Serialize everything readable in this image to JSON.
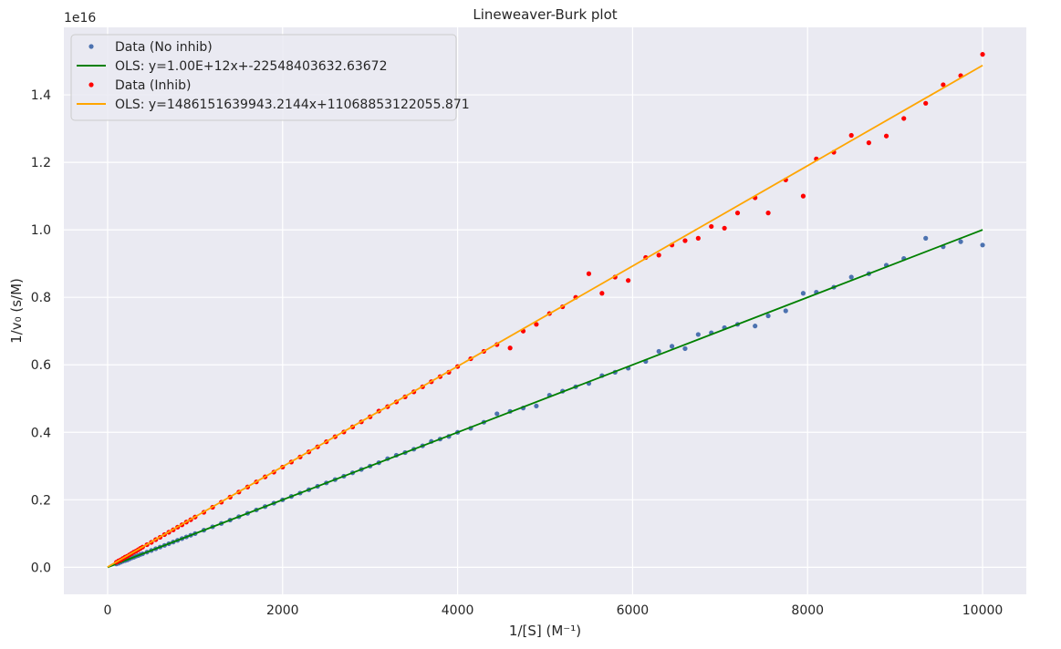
{
  "chart_data": {
    "type": "scatter",
    "title": "Lineweaver-Burk plot",
    "xlabel": "1/[S] (M⁻¹)",
    "ylabel": "1/v₀ (s/M)",
    "y_offset_text": "1e16",
    "y_scale_factor": 1e+16,
    "xlim": [
      -500,
      10500
    ],
    "ylim": [
      -0.08,
      1.6
    ],
    "x_ticks": [
      0,
      2000,
      4000,
      6000,
      8000,
      10000
    ],
    "x_tick_labels": [
      "0",
      "2000",
      "4000",
      "6000",
      "8000",
      "10000"
    ],
    "y_ticks": [
      0.0,
      0.2,
      0.4,
      0.6,
      0.8,
      1.0,
      1.2,
      1.4
    ],
    "y_tick_labels": [
      "0.0",
      "0.2",
      "0.4",
      "0.6",
      "0.8",
      "1.0",
      "1.2",
      "1.4"
    ],
    "grid": true,
    "legend_position": "top-left",
    "series": [
      {
        "name": "Data (No inhib)",
        "kind": "scatter",
        "color": "#4c72b0",
        "x": [
          100,
          125,
          150,
          175,
          200,
          225,
          250,
          275,
          300,
          325,
          350,
          375,
          400,
          450,
          500,
          550,
          600,
          650,
          700,
          750,
          800,
          850,
          900,
          950,
          1000,
          1100,
          1200,
          1300,
          1400,
          1500,
          1600,
          1700,
          1800,
          1900,
          2000,
          2100,
          2200,
          2300,
          2400,
          2500,
          2600,
          2700,
          2800,
          2900,
          3000,
          3100,
          3200,
          3300,
          3400,
          3500,
          3600,
          3700,
          3800,
          3900,
          4000,
          4150,
          4300,
          4450,
          4600,
          4750,
          4900,
          5050,
          5200,
          5350,
          5500,
          5650,
          5800,
          5950,
          6150,
          6300,
          6450,
          6600,
          6750,
          6900,
          7050,
          7200,
          7400,
          7550,
          7750,
          7950,
          8100,
          8300,
          8500,
          8700,
          8900,
          9100,
          9350,
          9550,
          9750,
          10000
        ],
        "y": [
          0.01,
          0.012,
          0.015,
          0.018,
          0.02,
          0.022,
          0.025,
          0.028,
          0.03,
          0.033,
          0.035,
          0.038,
          0.04,
          0.045,
          0.05,
          0.055,
          0.06,
          0.065,
          0.07,
          0.075,
          0.08,
          0.085,
          0.09,
          0.095,
          0.1,
          0.11,
          0.12,
          0.13,
          0.14,
          0.15,
          0.16,
          0.17,
          0.18,
          0.19,
          0.2,
          0.21,
          0.22,
          0.23,
          0.24,
          0.25,
          0.26,
          0.27,
          0.28,
          0.29,
          0.3,
          0.31,
          0.322,
          0.332,
          0.34,
          0.35,
          0.36,
          0.373,
          0.38,
          0.388,
          0.4,
          0.412,
          0.43,
          0.455,
          0.462,
          0.472,
          0.478,
          0.51,
          0.522,
          0.535,
          0.545,
          0.568,
          0.578,
          0.59,
          0.61,
          0.64,
          0.655,
          0.648,
          0.69,
          0.695,
          0.71,
          0.72,
          0.715,
          0.745,
          0.76,
          0.812,
          0.815,
          0.83,
          0.86,
          0.87,
          0.895,
          0.915,
          0.975,
          0.95,
          0.965,
          0.955
        ]
      },
      {
        "name": "OLS: y=1.00E+12x+-22548403632.63672",
        "kind": "line",
        "color": "#008000",
        "x": [
          0,
          10000
        ],
        "y": [
          0.0,
          1.0
        ]
      },
      {
        "name": "Data (Inhib)",
        "kind": "scatter",
        "color": "#ff0000",
        "x": [
          100,
          125,
          150,
          175,
          200,
          225,
          250,
          275,
          300,
          325,
          350,
          375,
          400,
          450,
          500,
          550,
          600,
          650,
          700,
          750,
          800,
          850,
          900,
          950,
          1000,
          1100,
          1200,
          1300,
          1400,
          1500,
          1600,
          1700,
          1800,
          1900,
          2000,
          2100,
          2200,
          2300,
          2400,
          2500,
          2600,
          2700,
          2800,
          2900,
          3000,
          3100,
          3200,
          3300,
          3400,
          3500,
          3600,
          3700,
          3800,
          3900,
          4000,
          4150,
          4300,
          4450,
          4600,
          4750,
          4900,
          5050,
          5200,
          5350,
          5500,
          5650,
          5800,
          5950,
          6150,
          6300,
          6450,
          6600,
          6750,
          6900,
          7050,
          7200,
          7400,
          7550,
          7750,
          7950,
          8100,
          8300,
          8500,
          8700,
          8900,
          9100,
          9350,
          9550,
          9750,
          10000
        ],
        "y": [
          0.015,
          0.019,
          0.022,
          0.026,
          0.03,
          0.033,
          0.037,
          0.041,
          0.045,
          0.048,
          0.052,
          0.056,
          0.06,
          0.067,
          0.074,
          0.082,
          0.089,
          0.097,
          0.104,
          0.111,
          0.119,
          0.126,
          0.134,
          0.141,
          0.149,
          0.163,
          0.178,
          0.193,
          0.208,
          0.223,
          0.238,
          0.253,
          0.268,
          0.282,
          0.297,
          0.312,
          0.327,
          0.342,
          0.357,
          0.372,
          0.387,
          0.401,
          0.416,
          0.431,
          0.446,
          0.463,
          0.476,
          0.49,
          0.505,
          0.52,
          0.535,
          0.55,
          0.565,
          0.578,
          0.595,
          0.618,
          0.64,
          0.66,
          0.65,
          0.7,
          0.72,
          0.752,
          0.772,
          0.8,
          0.87,
          0.812,
          0.86,
          0.85,
          0.918,
          0.925,
          0.955,
          0.968,
          0.975,
          1.01,
          1.005,
          1.05,
          1.095,
          1.05,
          1.148,
          1.1,
          1.21,
          1.23,
          1.28,
          1.258,
          1.278,
          1.33,
          1.375,
          1.43,
          1.457,
          1.52
        ]
      },
      {
        "name": "OLS: y=1486151639943.2144x+11068853122055.871",
        "kind": "line",
        "color": "#ffa500",
        "x": [
          0,
          10000
        ],
        "y": [
          0.0011,
          1.4872
        ]
      }
    ]
  }
}
